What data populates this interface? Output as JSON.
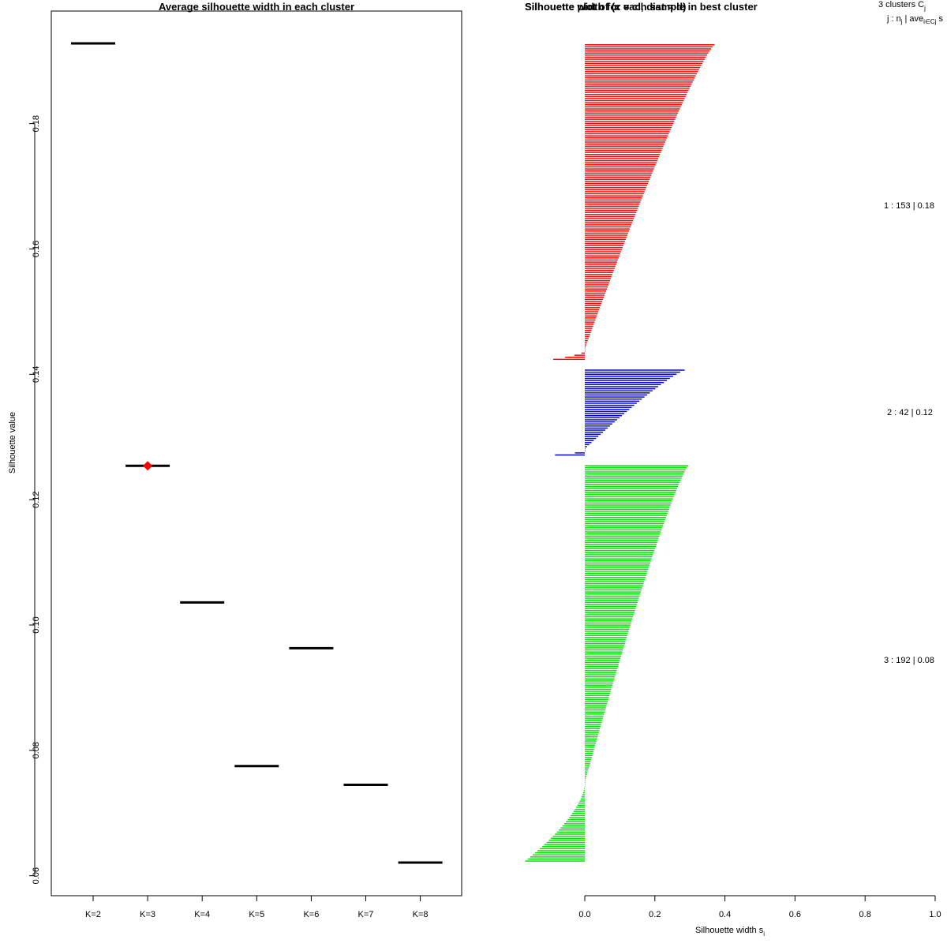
{
  "chart_data": [
    {
      "type": "line",
      "title": "Average silhouette width in each cluster",
      "xlabel": "",
      "ylabel": "Silhouette value",
      "categories": [
        "K=2",
        "K=3",
        "K=4",
        "K=5",
        "K=6",
        "K=7",
        "K=8"
      ],
      "values": [
        0.1928,
        0.1254,
        0.1036,
        0.0775,
        0.0963,
        0.0745,
        0.0621
      ],
      "best": "K=3",
      "best_marker_color": "#ff0000",
      "yticks": [
        "0.06",
        "0.08",
        "0.10",
        "0.12",
        "0.14",
        "0.16",
        "0.18"
      ],
      "ylim": [
        0.058,
        0.198
      ],
      "grid": false
    },
    {
      "type": "bar",
      "orientation": "horizontal",
      "title": "Silhouette width for each sample in best cluster",
      "title_overlap": "Silhouette plot of (x = cl, dist = d)",
      "xlabel": "Silhouette width s",
      "xlabel_sub": "i",
      "xlim": [
        0,
        1
      ],
      "xticks": [
        "0.0",
        "0.2",
        "0.4",
        "0.6",
        "0.8",
        "1.0"
      ],
      "legend_header": {
        "line1": "3 clusters C",
        "line1_sub": "j",
        "line2": "j : n",
        "line2_sub1": "j",
        "line2_mid": "| ave",
        "line2_sub2": "i∈Cj",
        "line2_tail": "s"
      },
      "clusters": [
        {
          "id": 1,
          "n": 153,
          "avg_label": "1 :  153  |  0.18",
          "color": "#ff0000",
          "pos_max": 0.37,
          "pos_min": 0.0,
          "neg_min": -0.09,
          "neg_count": 5
        },
        {
          "id": 2,
          "n": 42,
          "avg_label": "2 :  42  |  0.12",
          "color": "#0000cc",
          "pos_max": 0.285,
          "pos_min": 0.0,
          "neg_min": -0.085,
          "neg_count": 3
        },
        {
          "id": 3,
          "n": 192,
          "avg_label": "3 :  192  |  0.08",
          "color": "#00e000",
          "pos_max": 0.295,
          "pos_min": 0.0,
          "neg_min": -0.17,
          "neg_count": 38
        }
      ],
      "grid": false
    }
  ]
}
